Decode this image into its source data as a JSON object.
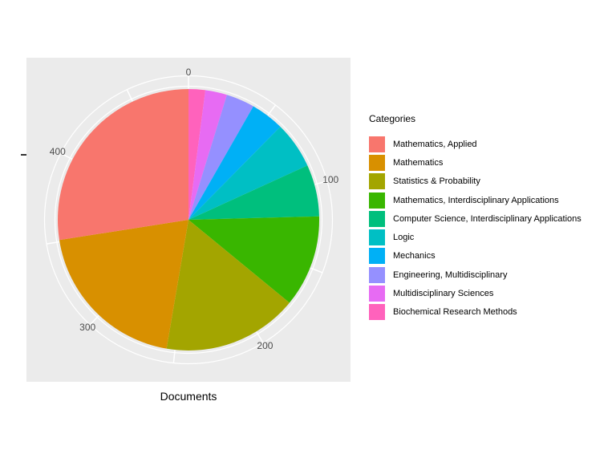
{
  "figure": {
    "panel_bg": "#EBEBEB",
    "grid_color": "#FFFFFF",
    "tick_text_color": "#4D4D4D",
    "axis_tick_color": "#333333"
  },
  "chart_data": {
    "type": "pie",
    "title": "",
    "xlabel": "Documents",
    "legend_title": "Categories",
    "legend_position": "right",
    "winding_note": "slices run counter-clockwise from top in legend order (i.e. reverse legend order clockwise); theta axis increases clockwise from 0 at top",
    "axis": {
      "tick_labels": [
        "0",
        "100",
        "200",
        "300",
        "400"
      ],
      "tick_values": [
        0,
        100,
        200,
        300,
        400
      ],
      "minor_interval": 50,
      "total": 484
    },
    "categories": [
      "Mathematics, Applied",
      "Mathematics",
      "Statistics & Probability",
      "Mathematics, Interdisciplinary Applications",
      "Computer Science, Interdisciplinary Applications",
      "Logic",
      "Mechanics",
      "Engineering, Multidisciplinary",
      "Multidisciplinary Sciences",
      "Biochemical Research Methods"
    ],
    "values": [
      133,
      96,
      81,
      55,
      31,
      28,
      20,
      17,
      13,
      10
    ],
    "colors": [
      "#F8766D",
      "#D89000",
      "#A3A500",
      "#39B600",
      "#00BF7D",
      "#00BFC4",
      "#00B0F6",
      "#9590FF",
      "#E76BF3",
      "#FF62BC"
    ]
  }
}
